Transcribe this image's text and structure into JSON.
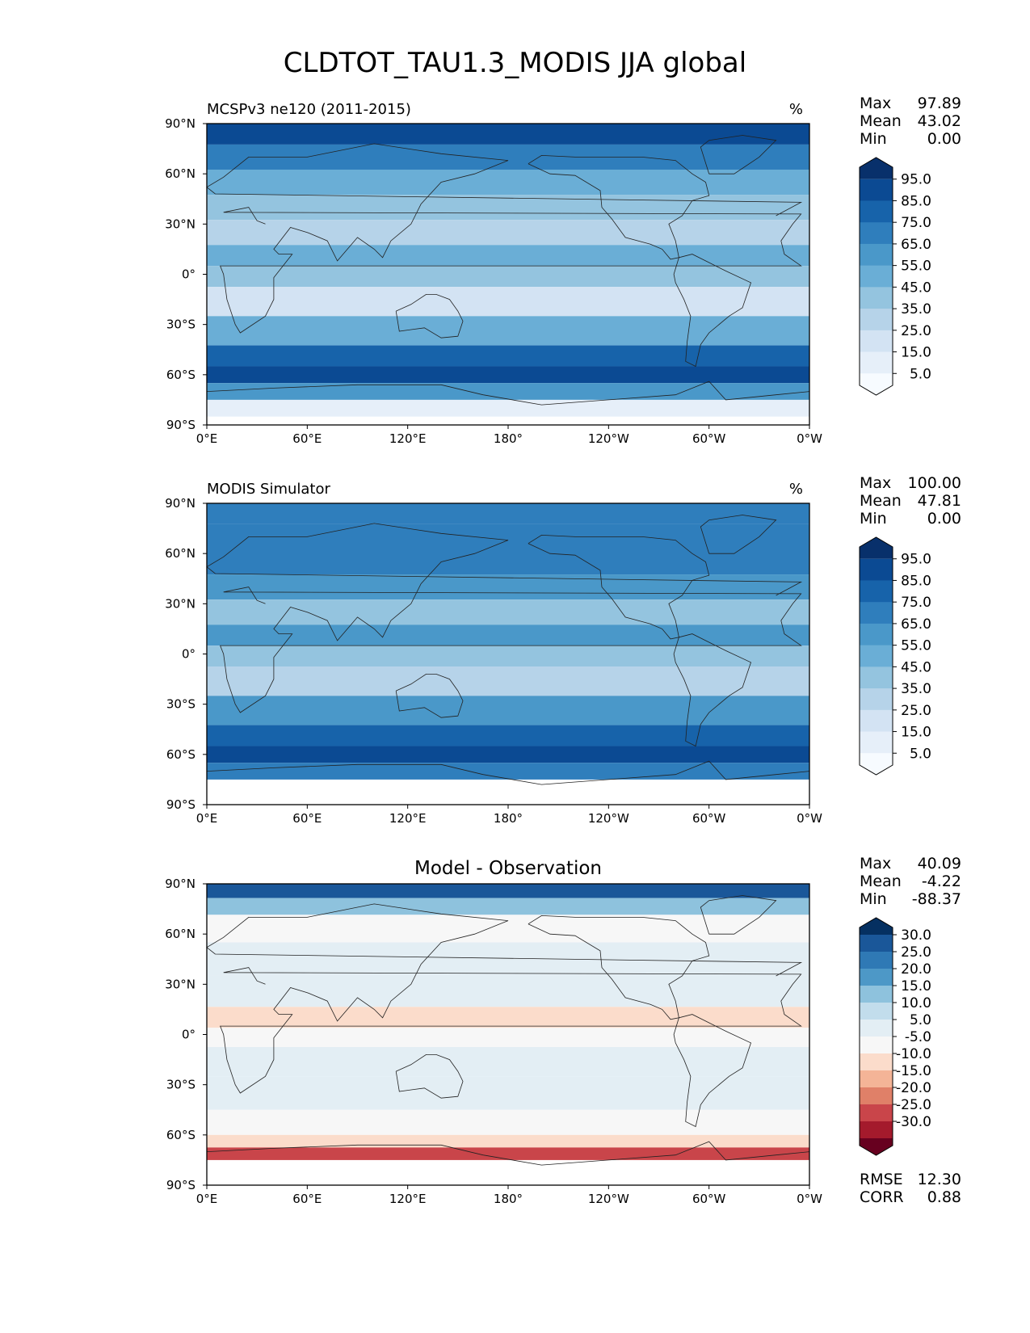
{
  "title": "CLDTOT_TAU1.3_MODIS JJA global",
  "chart_data": [
    {
      "type": "heatmap",
      "panel": "test",
      "title": "MCSPv3 ne120 (2011-2015)",
      "units": "%",
      "stats": {
        "max": "97.89",
        "mean": "43.02",
        "min": "0.00"
      },
      "stat_labels": [
        "Max",
        "Mean",
        "Min"
      ],
      "x_ticks": [
        "0°E",
        "60°E",
        "120°E",
        "180°",
        "120°W",
        "60°W",
        "0°W"
      ],
      "y_ticks": [
        "90°N",
        "60°N",
        "30°N",
        "0°",
        "30°S",
        "60°S",
        "90°S"
      ],
      "xlim": [
        0,
        360
      ],
      "ylim": [
        -90,
        90
      ],
      "colorbar": {
        "levels": [
          "95.0",
          "85.0",
          "75.0",
          "65.0",
          "55.0",
          "45.0",
          "35.0",
          "25.0",
          "15.0",
          "5.0"
        ],
        "colors": [
          "#08306b",
          "#0b4a93",
          "#1763aa",
          "#2f7ebc",
          "#4a98c9",
          "#6aaed6",
          "#94c4df",
          "#b6d3e9",
          "#d3e3f3",
          "#e6eff9",
          "#f7fbff"
        ]
      },
      "zonal_profile": [
        {
          "lat": 85,
          "value": 85
        },
        {
          "lat": 70,
          "value": 70
        },
        {
          "lat": 55,
          "value": 50
        },
        {
          "lat": 40,
          "value": 40
        },
        {
          "lat": 25,
          "value": 30
        },
        {
          "lat": 10,
          "value": 45
        },
        {
          "lat": 0,
          "value": 35
        },
        {
          "lat": -15,
          "value": 20
        },
        {
          "lat": -35,
          "value": 45
        },
        {
          "lat": -50,
          "value": 80
        },
        {
          "lat": -60,
          "value": 85
        },
        {
          "lat": -70,
          "value": 55
        },
        {
          "lat": -80,
          "value": 5
        }
      ]
    },
    {
      "type": "heatmap",
      "panel": "reference",
      "title": "MODIS Simulator",
      "units": "%",
      "stats": {
        "max": "100.00",
        "mean": "47.81",
        "min": "0.00"
      },
      "stat_labels": [
        "Max",
        "Mean",
        "Min"
      ],
      "x_ticks": [
        "0°E",
        "60°E",
        "120°E",
        "180°",
        "120°W",
        "60°W",
        "0°W"
      ],
      "y_ticks": [
        "90°N",
        "60°N",
        "30°N",
        "0°",
        "30°S",
        "60°S",
        "90°S"
      ],
      "xlim": [
        0,
        360
      ],
      "ylim": [
        -90,
        90
      ],
      "colorbar": {
        "levels": [
          "95.0",
          "85.0",
          "75.0",
          "65.0",
          "55.0",
          "45.0",
          "35.0",
          "25.0",
          "15.0",
          "5.0"
        ],
        "colors": [
          "#08306b",
          "#0b4a93",
          "#1763aa",
          "#2f7ebc",
          "#4a98c9",
          "#6aaed6",
          "#94c4df",
          "#b6d3e9",
          "#d3e3f3",
          "#e6eff9",
          "#f7fbff"
        ]
      },
      "zonal_profile": [
        {
          "lat": 85,
          "value": 65
        },
        {
          "lat": 70,
          "value": 65
        },
        {
          "lat": 55,
          "value": 70
        },
        {
          "lat": 40,
          "value": 55
        },
        {
          "lat": 25,
          "value": 40
        },
        {
          "lat": 10,
          "value": 55
        },
        {
          "lat": 0,
          "value": 40
        },
        {
          "lat": -15,
          "value": 30
        },
        {
          "lat": -35,
          "value": 55
        },
        {
          "lat": -50,
          "value": 80
        },
        {
          "lat": -60,
          "value": 88
        },
        {
          "lat": -70,
          "value": 70
        }
      ]
    },
    {
      "type": "heatmap",
      "panel": "difference",
      "title": "Model - Observation",
      "stats": {
        "max": "40.09",
        "mean": "-4.22",
        "min": "-88.37"
      },
      "stat_labels": [
        "Max",
        "Mean",
        "Min"
      ],
      "metrics": [
        {
          "label": "RMSE",
          "value": "12.30"
        },
        {
          "label": "CORR",
          "value": "0.88"
        }
      ],
      "x_ticks": [
        "0°E",
        "60°E",
        "120°E",
        "180°",
        "120°W",
        "60°W",
        "0°W"
      ],
      "y_ticks": [
        "90°N",
        "60°N",
        "30°N",
        "0°",
        "30°S",
        "60°S",
        "90°S"
      ],
      "xlim": [
        0,
        360
      ],
      "ylim": [
        -90,
        90
      ],
      "colorbar": {
        "levels": [
          "30.0",
          "25.0",
          "20.0",
          "15.0",
          "10.0",
          "5.0",
          "-5.0",
          "-10.0",
          "-15.0",
          "-20.0",
          "-25.0",
          "-30.0"
        ],
        "colors": [
          "#053061",
          "#1a5799",
          "#2f79b5",
          "#4d98c7",
          "#8ec2dd",
          "#c2ddec",
          "#e3eef4",
          "#f7f7f7",
          "#fbdccb",
          "#f4b497",
          "#e08068",
          "#c9454a",
          "#a41a2c",
          "#67001f"
        ]
      },
      "zonal_profile": [
        {
          "lat": 85,
          "value": 28
        },
        {
          "lat": 78,
          "value": 12
        },
        {
          "lat": 65,
          "value": -8
        },
        {
          "lat": 45,
          "value": -4
        },
        {
          "lat": 25,
          "value": -3
        },
        {
          "lat": 8,
          "value": -15
        },
        {
          "lat": 0,
          "value": -6
        },
        {
          "lat": -15,
          "value": -4
        },
        {
          "lat": -35,
          "value": -3
        },
        {
          "lat": -55,
          "value": -6
        },
        {
          "lat": -65,
          "value": -12
        },
        {
          "lat": -70,
          "value": -30
        }
      ]
    }
  ]
}
